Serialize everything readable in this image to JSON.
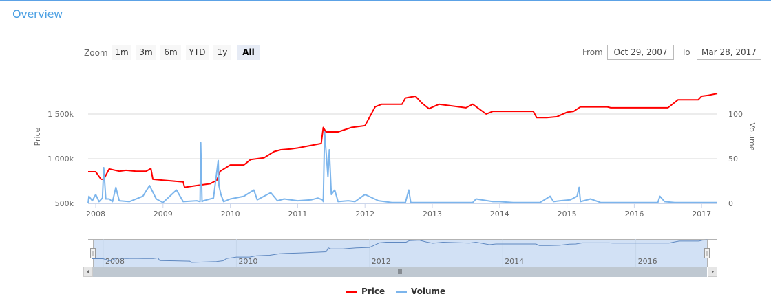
{
  "header": {
    "title": "Overview"
  },
  "range_selector": {
    "zoom_label": "Zoom",
    "buttons": [
      {
        "label": "1m",
        "active": false
      },
      {
        "label": "3m",
        "active": false
      },
      {
        "label": "6m",
        "active": false
      },
      {
        "label": "YTD",
        "active": false
      },
      {
        "label": "1y",
        "active": false
      },
      {
        "label": "All",
        "active": true
      }
    ],
    "from_label": "From",
    "from_value": "Oct 29, 2007",
    "to_label": "To",
    "to_value": "Mar 28, 2017"
  },
  "navigator": {
    "x_labels": [
      "2008",
      "2010",
      "2012",
      "2014",
      "2016"
    ],
    "scrollbar_grip": "|||"
  },
  "legend": {
    "items": [
      {
        "name": "Price",
        "color": "#ff0000"
      },
      {
        "name": "Volume",
        "color": "#7cb5ec"
      }
    ]
  },
  "chart_data": {
    "type": "line",
    "title": "",
    "xlabel": "",
    "x_tick_labels": [
      "2008",
      "2009",
      "2010",
      "2011",
      "2012",
      "2013",
      "2014",
      "2015",
      "2016",
      "2017"
    ],
    "y_axes": [
      {
        "label": "Price",
        "side": "left",
        "tick_labels": [
          "500k",
          "1 000k",
          "1 500k"
        ],
        "ticks": [
          500000,
          1000000,
          1500000
        ],
        "range": [
          500000,
          1500000
        ]
      },
      {
        "label": "Volume",
        "side": "right",
        "tick_labels": [
          "0",
          "50",
          "100"
        ],
        "ticks": [
          0,
          50,
          100
        ],
        "range": [
          0,
          100
        ]
      }
    ],
    "grid": true,
    "legend_position": "bottom-center",
    "series": [
      {
        "name": "Price",
        "color": "#ff0000",
        "axis": "left",
        "x": [
          2007.83,
          2008.0,
          2008.08,
          2008.12,
          2008.2,
          2008.35,
          2008.45,
          2008.6,
          2008.75,
          2008.82,
          2008.85,
          2009.0,
          2009.3,
          2009.32,
          2009.5,
          2009.7,
          2009.8,
          2009.85,
          2010.0,
          2010.2,
          2010.3,
          2010.5,
          2010.65,
          2010.75,
          2010.9,
          2011.0,
          2011.35,
          2011.38,
          2011.42,
          2011.6,
          2011.8,
          2012.0,
          2012.1,
          2012.15,
          2012.25,
          2012.55,
          2012.6,
          2012.75,
          2012.85,
          2012.95,
          2013.1,
          2013.5,
          2013.6,
          2013.8,
          2013.9,
          2014.0,
          2014.5,
          2014.55,
          2014.7,
          2014.85,
          2015.0,
          2015.1,
          2015.2,
          2015.6,
          2015.65,
          2016.0,
          2016.5,
          2016.55,
          2016.65,
          2016.95,
          2017.0,
          2017.1,
          2017.25
        ],
        "values": [
          854000,
          854000,
          770000,
          770000,
          885000,
          860000,
          870000,
          860000,
          860000,
          890000,
          770000,
          760000,
          740000,
          680000,
          700000,
          720000,
          760000,
          860000,
          930000,
          930000,
          990000,
          1010000,
          1080000,
          1100000,
          1110000,
          1120000,
          1170000,
          1350000,
          1300000,
          1300000,
          1350000,
          1370000,
          1510000,
          1580000,
          1610000,
          1610000,
          1680000,
          1700000,
          1620000,
          1560000,
          1610000,
          1570000,
          1610000,
          1500000,
          1530000,
          1530000,
          1530000,
          1460000,
          1460000,
          1470000,
          1520000,
          1530000,
          1580000,
          1580000,
          1570000,
          1570000,
          1570000,
          1600000,
          1660000,
          1660000,
          1700000,
          1710000,
          1730000
        ]
      },
      {
        "name": "Volume",
        "color": "#7cb5ec",
        "axis": "right",
        "x": [
          2007.83,
          2007.9,
          2007.95,
          2008.0,
          2008.05,
          2008.1,
          2008.12,
          2008.15,
          2008.2,
          2008.25,
          2008.3,
          2008.35,
          2008.5,
          2008.7,
          2008.8,
          2008.9,
          2009.0,
          2009.2,
          2009.3,
          2009.5,
          2009.55,
          2009.56,
          2009.58,
          2009.6,
          2009.75,
          2009.82,
          2009.83,
          2009.86,
          2009.9,
          2010.0,
          2010.2,
          2010.35,
          2010.4,
          2010.6,
          2010.7,
          2010.8,
          2011.0,
          2011.2,
          2011.3,
          2011.37,
          2011.38,
          2011.4,
          2011.45,
          2011.47,
          2011.5,
          2011.55,
          2011.6,
          2011.75,
          2011.85,
          2012.0,
          2012.2,
          2012.4,
          2012.6,
          2012.65,
          2012.68,
          2012.8,
          2013.0,
          2013.4,
          2013.6,
          2013.65,
          2013.9,
          2014.0,
          2014.2,
          2014.6,
          2014.75,
          2014.8,
          2014.9,
          2015.05,
          2015.15,
          2015.18,
          2015.2,
          2015.35,
          2015.5,
          2016.0,
          2016.35,
          2016.38,
          2016.45,
          2016.6,
          2017.0,
          2017.25
        ],
        "values": [
          0,
          8,
          3,
          10,
          2,
          6,
          40,
          5,
          5,
          2,
          18,
          3,
          2,
          8,
          20,
          5,
          1,
          15,
          2,
          3,
          2,
          68,
          2,
          3,
          6,
          48,
          20,
          10,
          2,
          5,
          8,
          15,
          4,
          12,
          3,
          5,
          3,
          4,
          6,
          4,
          2,
          80,
          30,
          60,
          10,
          15,
          2,
          3,
          2,
          10,
          3,
          1,
          1,
          15,
          1,
          1,
          1,
          1,
          1,
          5,
          2,
          2,
          1,
          1,
          8,
          2,
          3,
          4,
          8,
          18,
          2,
          5,
          1,
          1,
          1,
          8,
          2,
          1,
          1,
          1
        ]
      }
    ]
  }
}
